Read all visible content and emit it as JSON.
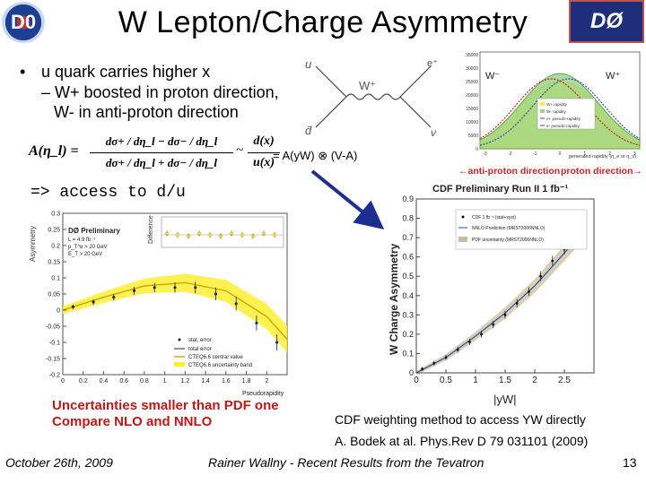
{
  "title": "W Lepton/Charge Asymmetry",
  "logo_left": "D0",
  "logo_right": "DØ",
  "bullets": {
    "marker": "•",
    "line1": "u quark carries higher x",
    "line2": "– W+ boosted in proton direction,",
    "line3": "W- in anti-proton direction"
  },
  "equation": {
    "lhs": "A(η_l) =",
    "frac_num": "dσ+ / dη_l − dσ− / dη_l",
    "frac_den": "dσ+ / dη_l + dσ− / dη_l",
    "approx": "~",
    "ratio_num": "d(x)",
    "ratio_den": "u(x)",
    "convolution": "= A(yW) ⊗ (V-A)"
  },
  "feynman": {
    "q_in": "u",
    "q_bar": "d̄",
    "boson": "W⁺",
    "lep": "e⁺",
    "nu": "ν"
  },
  "rapidity_plot": {
    "wminus": "W⁻",
    "wplus": "W⁺",
    "legend": [
      "W+ rapidity",
      "W- rapidity",
      "e+ pseudo-rapidity",
      "e- pseudo-rapidity"
    ],
    "xaxis": "generated rapidity (η_e or η_ν)",
    "arrow_left": "←anti-proton direction",
    "arrow_right": "proton direction→",
    "yticks": [
      "35000",
      "30000",
      "25000",
      "20000",
      "15000",
      "10000",
      "5000",
      "0"
    ],
    "xticks": [
      "-3",
      "-2",
      "-1",
      "0",
      "1",
      "2",
      "3"
    ]
  },
  "access_text": "=> access to d/u",
  "d0_plot": {
    "legend_title": "DØ Preliminary",
    "legend_lines": [
      "L = 4.9 fb⁻¹",
      "p_T^e > 20 GeV",
      "E_T > 20 GeV"
    ],
    "ylabel": "Asymmetry",
    "xlabel": "Pseudorapidity",
    "inset_ylabel": "Difference",
    "yticks": [
      "0.3",
      "0.25",
      "0.2",
      "0.15",
      "0.1",
      "0.05",
      "0",
      "-0.05",
      "-0.1",
      "-0.15",
      "-0.2"
    ],
    "xticks": [
      "0",
      "0.2",
      "0.4",
      "0.6",
      "0.8",
      "1",
      "1.2",
      "1.4",
      "1.6",
      "1.8",
      "2"
    ],
    "legend": [
      "stat. error",
      "total error",
      "CTEQ6.6 central value",
      "CTEQ6.6 uncertainty band"
    ]
  },
  "cdf_plot": {
    "title": "CDF Preliminary Run II 1 fb⁻¹",
    "ylabel": "W Charge Asymmetry",
    "xlabel": "|yW|",
    "yticks": [
      "0.9",
      "0.8",
      "0.7",
      "0.6",
      "0.5",
      "0.4",
      "0.3",
      "0.2",
      "0.1",
      "0"
    ],
    "xticks": [
      "0",
      "0.5",
      "1",
      "1.5",
      "2",
      "2.5"
    ],
    "legend": [
      "CDF 1 fb⁻¹ (stat+syst)",
      "NNLO Prediction (MRST2006NNLO)",
      "PDF uncertainty (MRST2006NNLO)"
    ]
  },
  "red_text": {
    "line1": "Uncertainties smaller than PDF one",
    "line2": "Compare NLO and NNLO"
  },
  "cdf_text": {
    "line1": "CDF weighting method to access YW directly",
    "line2": "A. Bodek at al.  Phys.Rev D 79 031101 (2009)"
  },
  "footer": {
    "date": "October 26th, 2009",
    "talk": "Rainer Wallny - Recent Results from the Tevatron",
    "page": "13"
  },
  "colors": {
    "yellow": "#ffee33",
    "green": "#9dd48e",
    "band": "#c9bd9a",
    "arrow": "#1c2e8f",
    "red": "#c01818"
  },
  "chart_data": [
    {
      "type": "scatter",
      "title": "DØ Preliminary",
      "xlabel": "Pseudorapidity",
      "ylabel": "Asymmetry",
      "xlim": [
        0,
        2.2
      ],
      "ylim": [
        -0.2,
        0.3
      ],
      "series": [
        {
          "name": "data",
          "x": [
            0.1,
            0.3,
            0.5,
            0.7,
            0.9,
            1.1,
            1.3,
            1.5,
            1.7,
            1.9,
            2.1
          ],
          "y": [
            0.01,
            0.025,
            0.04,
            0.06,
            0.07,
            0.07,
            0.07,
            0.05,
            0.02,
            -0.04,
            -0.1
          ]
        },
        {
          "name": "CTEQ6.6 central value",
          "x": [
            0,
            0.4,
            0.8,
            1.2,
            1.6,
            2.0,
            2.2
          ],
          "y": [
            0.0,
            0.04,
            0.075,
            0.085,
            0.06,
            -0.02,
            -0.09
          ]
        }
      ]
    },
    {
      "type": "scatter",
      "title": "CDF Preliminary Run II 1 fb⁻¹",
      "xlabel": "|yW|",
      "ylabel": "W Charge Asymmetry",
      "xlim": [
        0,
        3
      ],
      "ylim": [
        0,
        0.9
      ],
      "series": [
        {
          "name": "CDF 1 fb⁻¹",
          "x": [
            0.1,
            0.3,
            0.5,
            0.7,
            0.9,
            1.1,
            1.3,
            1.5,
            1.7,
            1.9,
            2.1,
            2.3,
            2.5,
            2.7
          ],
          "y": [
            0.02,
            0.05,
            0.08,
            0.12,
            0.16,
            0.2,
            0.25,
            0.3,
            0.36,
            0.42,
            0.5,
            0.58,
            0.64,
            0.72
          ]
        },
        {
          "name": "NNLO Prediction",
          "x": [
            0,
            0.5,
            1,
            1.5,
            2,
            2.5,
            3
          ],
          "y": [
            0.0,
            0.08,
            0.19,
            0.31,
            0.45,
            0.62,
            0.8
          ]
        }
      ]
    }
  ]
}
